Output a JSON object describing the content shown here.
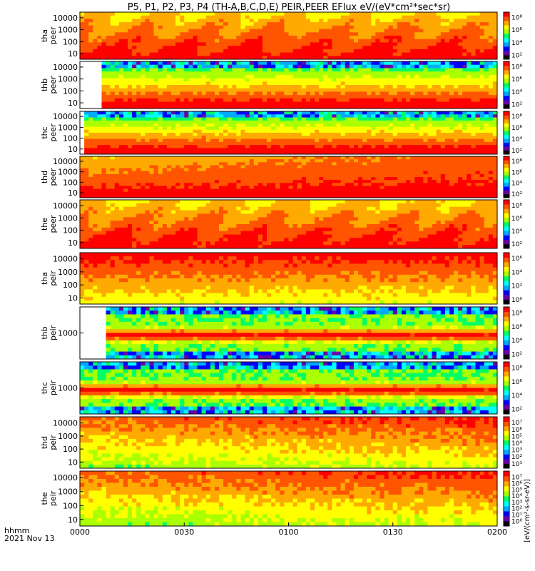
{
  "chart_data": {
    "type": "heatmap",
    "title": "P5, P1, P2, P3, P4 (TH-A,B,C,D,E) PEIR,PEER EFlux eV/(eV*cm²*sec*sr)",
    "xlabel": "hhmm",
    "date": "2021 Nov 13",
    "x_ticks": [
      "0000",
      "0030",
      "0100",
      "0130",
      "0200"
    ],
    "x_range": [
      "00:00",
      "02:00"
    ],
    "colorscale": [
      "#000000",
      "#6a00a8",
      "#0000ff",
      "#00aaff",
      "#00ffff",
      "#00ff66",
      "#aaff00",
      "#ffff00",
      "#ffaa00",
      "#ff5500",
      "#ff0000"
    ],
    "colorbar_label": "[eV/(cm²-s-sr-eV)]",
    "panels": [
      {
        "label_line1": "tha",
        "label_line2": "peer",
        "species": "electron",
        "yticks": [
          "10000",
          "1000",
          "100",
          "10"
        ],
        "cbar_ticks": [
          "10⁸",
          "10⁶",
          "10⁴",
          "10²"
        ],
        "data_start_frac": 0.0,
        "profile": "electron_mixed",
        "noise_band": false
      },
      {
        "label_line1": "thb",
        "label_line2": "peer",
        "species": "electron",
        "yticks": [
          "10000",
          "1000",
          "100",
          "10"
        ],
        "cbar_ticks": [
          "10⁸",
          "10⁶",
          "10⁴",
          "10²"
        ],
        "data_start_frac": 0.05,
        "profile": "electron_quiet",
        "noise_band": true
      },
      {
        "label_line1": "thc",
        "label_line2": "peer",
        "species": "electron",
        "yticks": [
          "10000",
          "1000",
          "100",
          "10"
        ],
        "cbar_ticks": [
          "10⁸",
          "10⁶",
          "10⁴",
          "10²"
        ],
        "data_start_frac": 0.01,
        "profile": "electron_quiet",
        "noise_band": true
      },
      {
        "label_line1": "thd",
        "label_line2": "peer",
        "species": "electron",
        "yticks": [
          "10000",
          "1000",
          "100",
          "10"
        ],
        "cbar_ticks": [
          "10⁸",
          "10⁶",
          "10⁴",
          "10²"
        ],
        "data_start_frac": 0.0,
        "profile": "electron_hot",
        "noise_band": false
      },
      {
        "label_line1": "the",
        "label_line2": "peer",
        "species": "electron",
        "yticks": [
          "10000",
          "1000",
          "100",
          "10"
        ],
        "cbar_ticks": [
          "10⁸",
          "10⁶",
          "10⁴",
          "10²"
        ],
        "data_start_frac": 0.0,
        "profile": "electron_mixed",
        "noise_band": false
      },
      {
        "label_line1": "tha",
        "label_line2": "peir",
        "species": "ion",
        "yticks": [
          "10000",
          "1000",
          "100",
          "10"
        ],
        "cbar_ticks": [
          "10⁶",
          "10⁴",
          "10²",
          "10⁰"
        ],
        "data_start_frac": 0.0,
        "profile": "ion_hot",
        "noise_band": false
      },
      {
        "label_line1": "thb",
        "label_line2": "peir",
        "species": "ion",
        "yticks": [
          "1000"
        ],
        "cbar_ticks": [
          "10⁸",
          "10⁶",
          "10⁴",
          "10²"
        ],
        "data_start_frac": 0.06,
        "profile": "ion_bands",
        "noise_band": true
      },
      {
        "label_line1": "thc",
        "label_line2": "peir",
        "species": "ion",
        "yticks": [
          "1000"
        ],
        "cbar_ticks": [
          "10⁸",
          "10⁶",
          "10⁴",
          "10²"
        ],
        "data_start_frac": 0.0,
        "profile": "ion_bands",
        "noise_band": true
      },
      {
        "label_line1": "thd",
        "label_line2": "peir",
        "species": "ion",
        "yticks": [
          "10000",
          "1000",
          "100",
          "10"
        ],
        "cbar_ticks": [
          "10⁷",
          "10⁶",
          "10⁵",
          "10⁴",
          "10³",
          "10²",
          "10¹"
        ],
        "data_start_frac": 0.0,
        "profile": "ion_mixed",
        "noise_band": false
      },
      {
        "label_line1": "the",
        "label_line2": "peir",
        "species": "ion",
        "yticks": [
          "10000",
          "1000",
          "100",
          "10"
        ],
        "cbar_ticks": [
          "10⁷",
          "10⁶",
          "10⁵",
          "10⁴",
          "10³",
          "10²",
          "10¹",
          "10⁰"
        ],
        "data_start_frac": 0.0,
        "profile": "ion_mixed",
        "noise_band": false
      }
    ]
  }
}
